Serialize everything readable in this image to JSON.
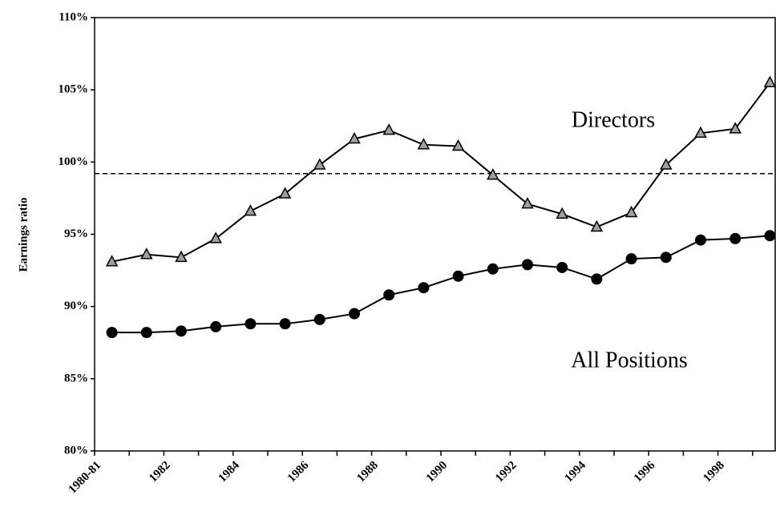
{
  "chart_data": {
    "type": "line",
    "y_label": "Earnings ratio",
    "annotations": [
      "Directors",
      "All Positions"
    ],
    "categories": [
      "1980-81",
      null,
      "1982",
      null,
      "1984",
      null,
      "1986",
      null,
      "1988",
      null,
      "1990",
      null,
      "1992",
      null,
      "1994",
      null,
      "1996",
      null,
      "1998",
      null
    ],
    "series": [
      {
        "name": "Directors",
        "color": "#a0a0a0",
        "marker": "triangle",
        "values": [
          93.1,
          93.6,
          93.4,
          94.7,
          96.6,
          97.8,
          99.8,
          101.6,
          102.2,
          101.2,
          101.1,
          99.1,
          97.1,
          96.4,
          95.5,
          96.5,
          99.8,
          102.0,
          102.3,
          105.5
        ]
      },
      {
        "name": "All Positions",
        "color": "#000000",
        "marker": "circle",
        "values": [
          88.2,
          88.2,
          88.3,
          88.6,
          88.8,
          88.8,
          89.1,
          89.5,
          90.8,
          91.3,
          92.1,
          92.6,
          92.9,
          92.7,
          91.9,
          93.3,
          93.4,
          94.6,
          94.7,
          94.9
        ]
      }
    ],
    "reference_line": 99.2,
    "ylim": [
      80,
      110
    ],
    "yticks": [
      {
        "value": 80,
        "label": "80%"
      },
      {
        "value": 85,
        "label": "85%"
      },
      {
        "value": 90,
        "label": "90%"
      },
      {
        "value": 95,
        "label": "95%"
      },
      {
        "value": 100,
        "label": "100%"
      },
      {
        "value": 105,
        "label": "105%"
      },
      {
        "value": 110,
        "label": "110%"
      }
    ],
    "grid": false
  }
}
